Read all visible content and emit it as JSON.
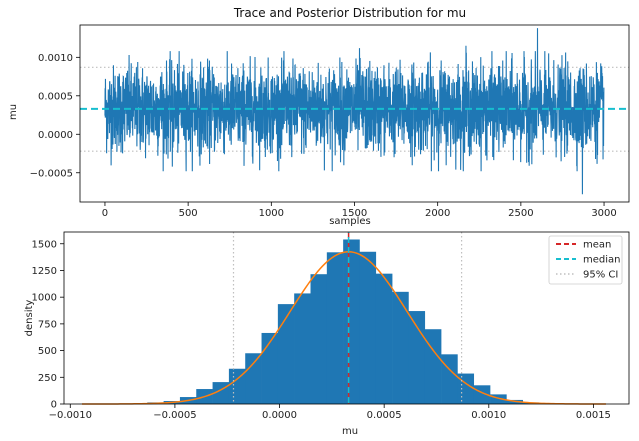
{
  "chart_data": [
    {
      "type": "line",
      "title": "Trace and Posterior Distribution for mu",
      "xlabel": "samples",
      "ylabel": "mu",
      "xlim": [
        -150,
        3150
      ],
      "ylim": [
        -0.00088,
        0.00142
      ],
      "xticks": [
        0,
        500,
        1000,
        1500,
        2000,
        2500,
        3000
      ],
      "xtick_labels": [
        "0",
        "500",
        "1000",
        "1500",
        "2000",
        "2500",
        "3000"
      ],
      "yticks": [
        -0.0005,
        0.0,
        0.0005,
        0.001
      ],
      "ytick_labels": [
        "−0.0005",
        "0.0000",
        "0.0005",
        "0.0010"
      ],
      "n_samples": 3000,
      "trace_mean": 0.00033,
      "trace_sd": 0.00028,
      "trace_range": [
        -0.00078,
        0.00138
      ],
      "spikes": [
        {
          "x": 2600,
          "y": 0.00138
        },
        {
          "x": 2870,
          "y": -0.00078
        },
        {
          "x": 1530,
          "y": 0.00112
        },
        {
          "x": 2170,
          "y": 0.00115
        },
        {
          "x": 405,
          "y": -0.00042
        }
      ],
      "median": 0.00033,
      "ci_95": [
        -0.00022,
        0.00087
      ],
      "grid": false,
      "colors": {
        "trace": "#1f77b4",
        "median": "#17becf",
        "ci": "#bfbfbf"
      }
    },
    {
      "type": "bar",
      "xlabel": "mu",
      "ylabel": "density",
      "xlim": [
        -0.00103,
        0.00167
      ],
      "ylim": [
        0,
        1610
      ],
      "xticks": [
        -0.001,
        -0.0005,
        0.0,
        0.0005,
        0.001,
        0.0015
      ],
      "xtick_labels": [
        "−0.0010",
        "−0.0005",
        "0.0000",
        "0.0005",
        "0.0010",
        "0.0015"
      ],
      "yticks": [
        0,
        250,
        500,
        750,
        1000,
        1250,
        1500
      ],
      "ytick_labels": [
        "0",
        "250",
        "500",
        "750",
        "1000",
        "1250",
        "1500"
      ],
      "bin_edges": [
        -0.000944,
        -0.000866,
        -0.000788,
        -0.00071,
        -0.000632,
        -0.000554,
        -0.000476,
        -0.000398,
        -0.00032,
        -0.000242,
        -0.000164,
        -8.6e-05,
        -8e-06,
        7e-05,
        0.000148,
        0.000226,
        0.000304,
        0.000382,
        0.00046,
        0.000538,
        0.000616,
        0.000694,
        0.000772,
        0.00085,
        0.000928,
        0.001006,
        0.001084,
        0.001162,
        0.00124,
        0.001318,
        0.001396,
        0.001474,
        0.00156
      ],
      "bin_values": [
        0,
        0,
        0,
        3,
        15,
        28,
        65,
        140,
        205,
        330,
        475,
        665,
        935,
        1035,
        1215,
        1420,
        1540,
        1425,
        1220,
        1050,
        870,
        700,
        465,
        285,
        175,
        90,
        38,
        15,
        8,
        3,
        1,
        0
      ],
      "kde": {
        "mean": 0.00033,
        "sd": 0.00028,
        "peak": 1425
      },
      "mean": 0.00033,
      "median": 0.00033,
      "ci_95": [
        -0.00022,
        0.00087
      ],
      "legend": {
        "placement": "top-right",
        "entries": [
          "mean",
          "median",
          "95% CI"
        ]
      },
      "grid": false,
      "colors": {
        "bars": "#1f77b4",
        "kde": "#ff7f0e",
        "mean": "#d62728",
        "median": "#17becf",
        "ci": "#bfbfbf"
      }
    }
  ]
}
